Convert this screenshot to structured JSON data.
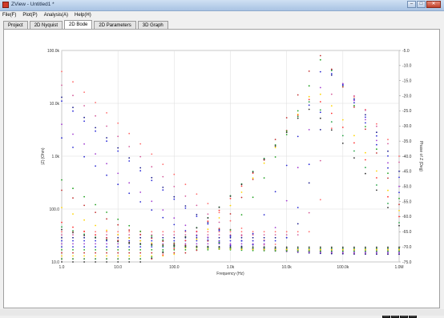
{
  "window": {
    "title": "ZView - Untitled1 *"
  },
  "menu": [
    "File(F)",
    "Plot(P)",
    "Analysis(A)",
    "Help(H)"
  ],
  "tabs": [
    {
      "label": "Project",
      "active": false
    },
    {
      "label": "2D Nyquist",
      "active": false
    },
    {
      "label": "2D Bode",
      "active": true
    },
    {
      "label": "2D Parameters",
      "active": false
    },
    {
      "label": "3D Graph",
      "active": false
    }
  ],
  "chart_data": {
    "type": "scatter",
    "xlabel": "Frequency (Hz)",
    "ylabel_left": "|Z| (Ohm)",
    "ylabel_right": "Phase of Z (Deg)",
    "x_scale": "log",
    "y_left_scale": "log",
    "xlim": [
      1,
      1000000
    ],
    "ylim_left": [
      10,
      100000
    ],
    "ylim_right": [
      -75,
      -5
    ],
    "x_ticks": [
      "1.0",
      "10.0",
      "100.0",
      "1.0k",
      "10.0k",
      "100.0k",
      "1.0M"
    ],
    "y_left_ticks": [
      "10.0",
      "100.0",
      "1.0k",
      "10.0k",
      "100.0k"
    ],
    "y_right_ticks": [
      "-5.0",
      "-10.0",
      "-15.0",
      "-20.0",
      "-25.0",
      "-30.0",
      "-35.0",
      "-40.0",
      "-45.0",
      "-50.0",
      "-55.0",
      "-60.0",
      "-65.0",
      "-70.0",
      "-75.0"
    ],
    "grid": true,
    "series": [
      {
        "color": "#ff6b6b",
        "Z_f1": 40000,
        "Z_inf": 14,
        "fc": 28000,
        "alpha": 0.98,
        "phase_min": -65,
        "phase_peak": -16,
        "f_peak": 80000,
        "phase_hi": -40
      },
      {
        "color": "#d45c9a",
        "Z_f1": 22000,
        "Z_inf": 14,
        "fc": 18000,
        "alpha": 0.97,
        "phase_min": -66,
        "phase_peak": -14,
        "f_peak": 70000,
        "phase_hi": -42
      },
      {
        "color": "#1a1a8c",
        "Z_f1": 13000,
        "Z_inf": 14,
        "fc": 12000,
        "alpha": 0.96,
        "phase_min": -67,
        "phase_peak": -13,
        "f_peak": 60000,
        "phase_hi": -45
      },
      {
        "color": "#2b2bd8",
        "Z_f1": 11000,
        "Z_inf": 15,
        "fc": 9000,
        "alpha": 0.95,
        "phase_min": -68,
        "phase_peak": -12,
        "f_peak": 55000,
        "phase_hi": -47
      },
      {
        "color": "#a23dd0",
        "Z_f1": 4000,
        "Z_inf": 15,
        "fc": 4000,
        "alpha": 0.94,
        "phase_min": -69,
        "phase_peak": -10,
        "f_peak": 50000,
        "phase_hi": -50
      },
      {
        "color": "#2a2ad0",
        "Z_f1": 2200,
        "Z_inf": 16,
        "fc": 1500,
        "alpha": 0.9,
        "phase_min": -70,
        "phase_peak": -9,
        "f_peak": 45000,
        "phase_hi": -52
      },
      {
        "color": "#1fa01f",
        "Z_f1": 340,
        "Z_inf": 16,
        "fc": 400,
        "alpha": 0.85,
        "phase_min": -71,
        "phase_peak": -8,
        "f_peak": 40000,
        "phase_hi": -54
      },
      {
        "color": "#c23030",
        "Z_f1": 210,
        "Z_inf": 17,
        "fc": 200,
        "alpha": 0.8,
        "phase_min": -72,
        "phase_peak": -6,
        "f_peak": 35000,
        "phase_hi": -56
      },
      {
        "color": "#ffd400",
        "Z_f1": 90,
        "Z_inf": 17,
        "fc": 80,
        "alpha": 0.75,
        "phase_min": -73,
        "phase_peak": -18,
        "f_peak": 30000,
        "phase_hi": -58
      },
      {
        "color": "#ff3030",
        "Z_f1": 38,
        "Z_inf": 18,
        "fc": 40,
        "alpha": 0.7,
        "phase_min": -74,
        "phase_peak": -20,
        "f_peak": 28000,
        "phase_hi": -60
      },
      {
        "color": "#20a040",
        "Z_f1": 28,
        "Z_inf": 18,
        "fc": 30,
        "alpha": 0.65,
        "phase_min": -74,
        "phase_peak": -22,
        "f_peak": 25000,
        "phase_hi": -62
      },
      {
        "color": "#303030",
        "Z_f1": 22,
        "Z_inf": 19,
        "fc": 25,
        "alpha": 0.6,
        "phase_min": -75,
        "phase_peak": -24,
        "f_peak": 22000,
        "phase_hi": -63
      }
    ]
  }
}
